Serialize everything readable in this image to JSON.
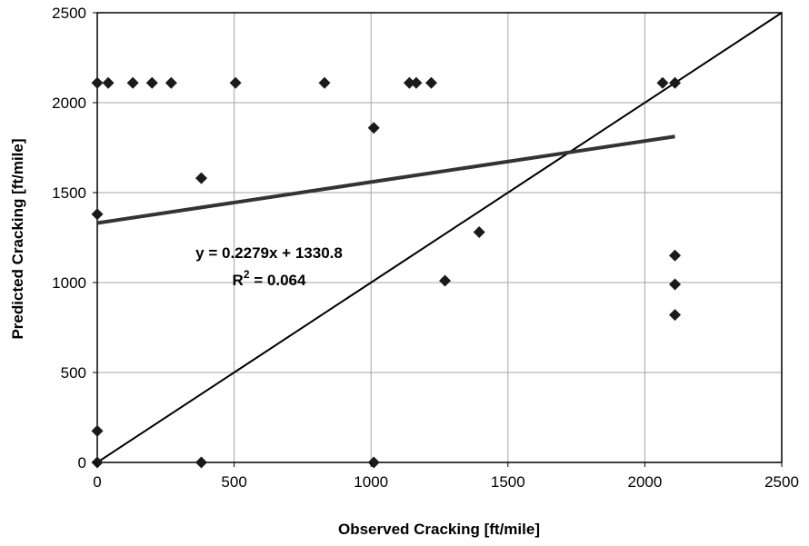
{
  "chart_data": {
    "type": "scatter",
    "xlabel": "Observed Cracking [ft/mile]",
    "ylabel": "Predicted Cracking [ft/mile]",
    "xlim": [
      0,
      2500
    ],
    "ylim": [
      0,
      2500
    ],
    "xticks": [
      0,
      500,
      1000,
      1500,
      2000,
      2500
    ],
    "yticks": [
      0,
      500,
      1000,
      1500,
      2000,
      2500
    ],
    "grid": true,
    "marker": "diamond",
    "marker_color": "#1a1a1a",
    "points": [
      {
        "x": 0,
        "y": 2110
      },
      {
        "x": 40,
        "y": 2110
      },
      {
        "x": 130,
        "y": 2110
      },
      {
        "x": 200,
        "y": 2110
      },
      {
        "x": 270,
        "y": 2110
      },
      {
        "x": 505,
        "y": 2110
      },
      {
        "x": 830,
        "y": 2110
      },
      {
        "x": 1140,
        "y": 2110
      },
      {
        "x": 1165,
        "y": 2110
      },
      {
        "x": 1220,
        "y": 2110
      },
      {
        "x": 2065,
        "y": 2110
      },
      {
        "x": 2110,
        "y": 2110
      },
      {
        "x": 1010,
        "y": 1860
      },
      {
        "x": 380,
        "y": 1580
      },
      {
        "x": 0,
        "y": 1380
      },
      {
        "x": 1395,
        "y": 1280
      },
      {
        "x": 1270,
        "y": 1010
      },
      {
        "x": 2110,
        "y": 1150
      },
      {
        "x": 2110,
        "y": 990
      },
      {
        "x": 2110,
        "y": 820
      },
      {
        "x": 0,
        "y": 175
      },
      {
        "x": 0,
        "y": 0
      },
      {
        "x": 380,
        "y": 0
      },
      {
        "x": 1010,
        "y": 0
      }
    ],
    "trendline": {
      "slope": 0.2279,
      "intercept": 1330.8,
      "x_range": [
        0,
        2110
      ],
      "equation_text": "y = 0.2279x + 1330.8",
      "r2_prefix": "R",
      "r2_exp": "2",
      "r2_suffix": " = 0.064"
    },
    "reference_line": {
      "from": [
        0,
        0
      ],
      "to": [
        2500,
        2500
      ]
    }
  }
}
